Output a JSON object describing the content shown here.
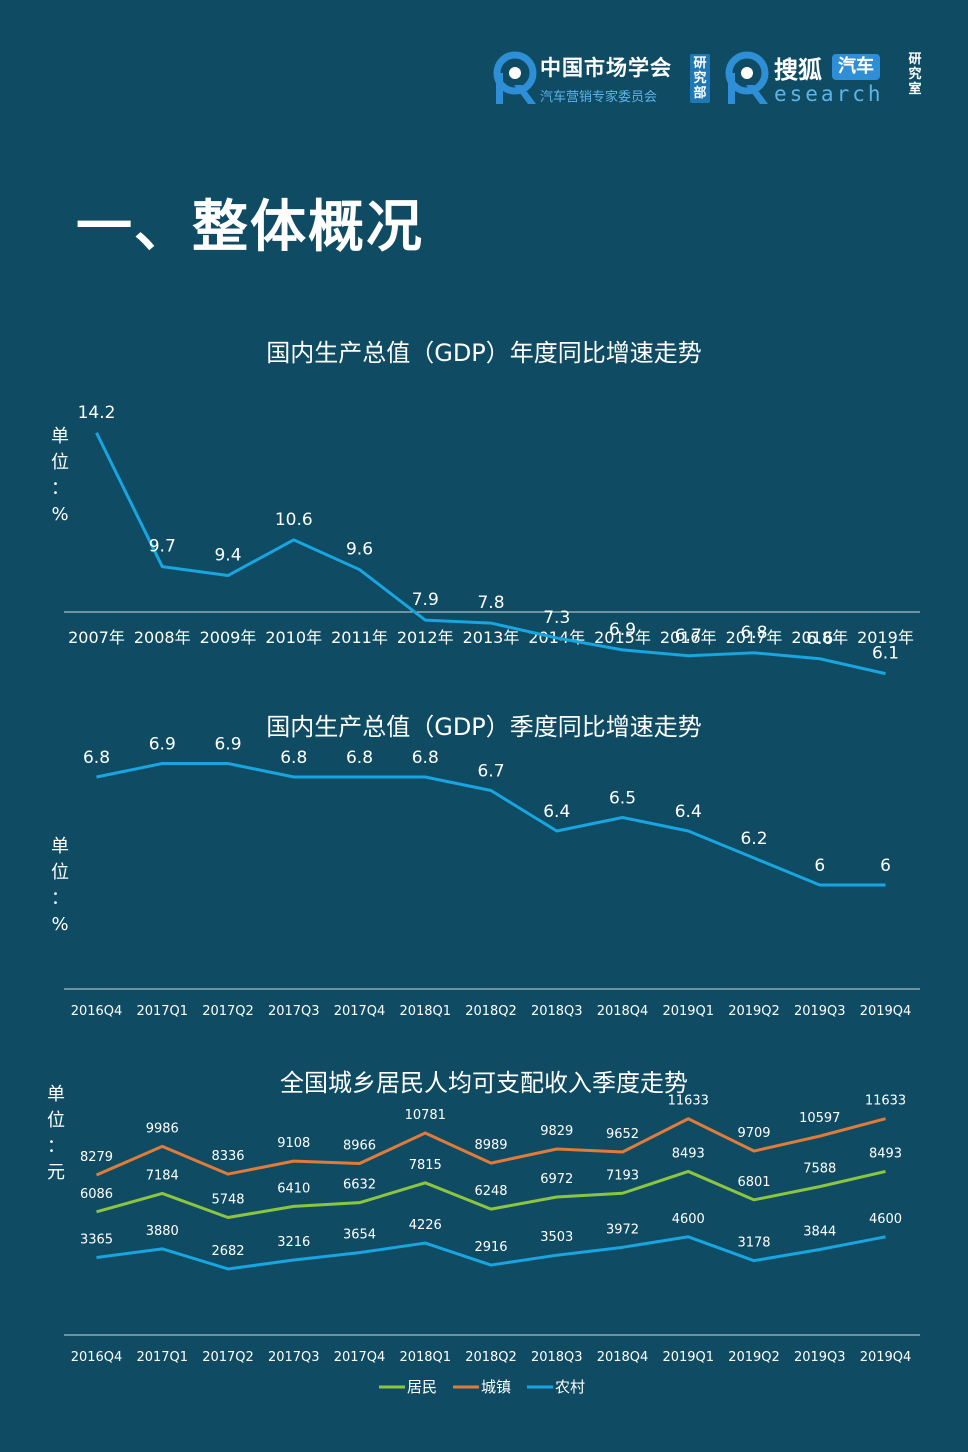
{
  "header": {
    "logo_left": {
      "main": "中国市场学会",
      "sub": "汽车营销专家委员会",
      "vertical": "研究部"
    },
    "logo_right": {
      "main": "搜狐",
      "pill": "汽车",
      "sub": "esearch",
      "vertical": "研究室"
    }
  },
  "page_title": "一、整体概况",
  "colors": {
    "background": "#0f4c64",
    "line_blue": "#18a5e0",
    "line_orange": "#e07b39",
    "line_green": "#8cc63f",
    "axis": "#cfd8dc"
  },
  "chart_data": [
    {
      "type": "line",
      "title": "国内生产总值（GDP）年度同比增速走势",
      "unit_label": [
        "单",
        "位",
        "：",
        "%"
      ],
      "categories": [
        "2007年",
        "2008年",
        "2009年",
        "2010年",
        "2011年",
        "2012年",
        "2013年",
        "2014年",
        "2015年",
        "2016年",
        "2017年",
        "2018年",
        "2019年"
      ],
      "series": [
        {
          "name": "GDP年度同比增速",
          "color": "#18a5e0",
          "values": [
            14.2,
            9.7,
            9.4,
            10.6,
            9.6,
            7.9,
            7.8,
            7.3,
            6.9,
            6.7,
            6.8,
            6.6,
            6.1
          ],
          "labels": [
            "14.2",
            "9.7",
            "9.4",
            "10.6",
            "9.6",
            "7.9",
            "7.8",
            "7.3",
            "6.9",
            "6.7",
            "6.8",
            "6.6",
            "6.1"
          ]
        }
      ],
      "ylim": [
        0,
        15
      ]
    },
    {
      "type": "line",
      "title": "国内生产总值（GDP）季度同比增速走势",
      "unit_label": [
        "单",
        "位",
        "：",
        "%"
      ],
      "categories": [
        "2016Q4",
        "2017Q1",
        "2017Q2",
        "2017Q3",
        "2017Q4",
        "2018Q1",
        "2018Q2",
        "2018Q3",
        "2018Q4",
        "2019Q1",
        "2019Q2",
        "2019Q3",
        "2019Q4"
      ],
      "series": [
        {
          "name": "GDP季度同比增速",
          "color": "#18a5e0",
          "values": [
            6.8,
            6.9,
            6.9,
            6.8,
            6.8,
            6.8,
            6.7,
            6.4,
            6.5,
            6.4,
            6.2,
            6,
            6
          ],
          "labels": [
            "6.8",
            "6.9",
            "6.9",
            "6.8",
            "6.8",
            "6.8",
            "6.7",
            "6.4",
            "6.5",
            "6.4",
            "6.2",
            "6",
            "6"
          ]
        }
      ],
      "ylim": [
        5,
        7
      ]
    },
    {
      "type": "line",
      "title": "全国城乡居民人均可支配收入季度走势",
      "unit_label": [
        "单",
        "位",
        "：",
        "元"
      ],
      "categories": [
        "2016Q4",
        "2017Q1",
        "2017Q2",
        "2017Q3",
        "2017Q4",
        "2018Q1",
        "2018Q2",
        "2018Q3",
        "2018Q4",
        "2019Q1",
        "2019Q2",
        "2019Q3",
        "2019Q4"
      ],
      "series": [
        {
          "name": "城镇",
          "color": "#e07b39",
          "values": [
            8279,
            9986,
            8336,
            9108,
            8966,
            10781,
            8989,
            9829,
            9652,
            11633,
            9709,
            10597,
            11633
          ],
          "labels": [
            "8279",
            "9986",
            "8336",
            "9108",
            "8966",
            "10781",
            "8989",
            "9829",
            "9652",
            "11633",
            "9709",
            "10597",
            "11633"
          ]
        },
        {
          "name": "居民",
          "color": "#8cc63f",
          "values": [
            6086,
            7184,
            5748,
            6410,
            6632,
            7815,
            6248,
            6972,
            7193,
            8493,
            6801,
            7588,
            8493
          ],
          "labels": [
            "6086",
            "7184",
            "5748",
            "6410",
            "6632",
            "7815",
            "6248",
            "6972",
            "7193",
            "8493",
            "6801",
            "7588",
            "8493"
          ]
        },
        {
          "name": "农村",
          "color": "#18a5e0",
          "values": [
            3365,
            3880,
            2682,
            3216,
            3654,
            4226,
            2916,
            3503,
            3972,
            4600,
            3178,
            3844,
            4600
          ],
          "labels": [
            "3365",
            "3880",
            "2682",
            "3216",
            "3654",
            "4226",
            "2916",
            "3503",
            "3972",
            "4600",
            "3178",
            "3844",
            "4600"
          ]
        }
      ],
      "legend": [
        "居民",
        "城镇",
        "农村"
      ],
      "legend_position": "bottom-center",
      "ylim": [
        0,
        14000
      ]
    }
  ]
}
